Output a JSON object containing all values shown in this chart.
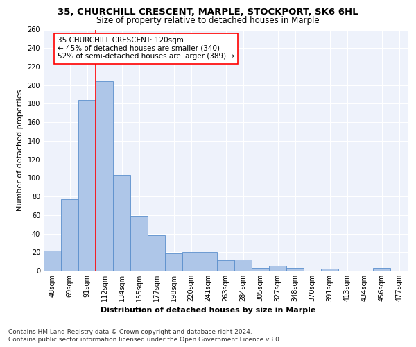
{
  "title1": "35, CHURCHILL CRESCENT, MARPLE, STOCKPORT, SK6 6HL",
  "title2": "Size of property relative to detached houses in Marple",
  "xlabel": "Distribution of detached houses by size in Marple",
  "ylabel": "Number of detached properties",
  "bin_labels": [
    "48sqm",
    "69sqm",
    "91sqm",
    "112sqm",
    "134sqm",
    "155sqm",
    "177sqm",
    "198sqm",
    "220sqm",
    "241sqm",
    "263sqm",
    "284sqm",
    "305sqm",
    "327sqm",
    "348sqm",
    "370sqm",
    "391sqm",
    "413sqm",
    "434sqm",
    "456sqm",
    "477sqm"
  ],
  "bar_values": [
    22,
    77,
    184,
    204,
    103,
    59,
    38,
    19,
    20,
    20,
    11,
    12,
    3,
    5,
    3,
    0,
    2,
    0,
    0,
    3,
    0
  ],
  "bar_color": "#aec6e8",
  "bar_edge_color": "#5b8fcc",
  "subject_line_color": "red",
  "annotation_text": "35 CHURCHILL CRESCENT: 120sqm\n← 45% of detached houses are smaller (340)\n52% of semi-detached houses are larger (389) →",
  "annotation_box_color": "white",
  "annotation_box_edge": "red",
  "ylim": [
    0,
    260
  ],
  "yticks": [
    0,
    20,
    40,
    60,
    80,
    100,
    120,
    140,
    160,
    180,
    200,
    220,
    240,
    260
  ],
  "footer1": "Contains HM Land Registry data © Crown copyright and database right 2024.",
  "footer2": "Contains public sector information licensed under the Open Government Licence v3.0.",
  "bg_color": "#eef2fb",
  "grid_color": "white",
  "title1_fontsize": 9.5,
  "title2_fontsize": 8.5,
  "axis_label_fontsize": 8,
  "tick_fontsize": 7,
  "annotation_fontsize": 7.5,
  "footer_fontsize": 6.5
}
